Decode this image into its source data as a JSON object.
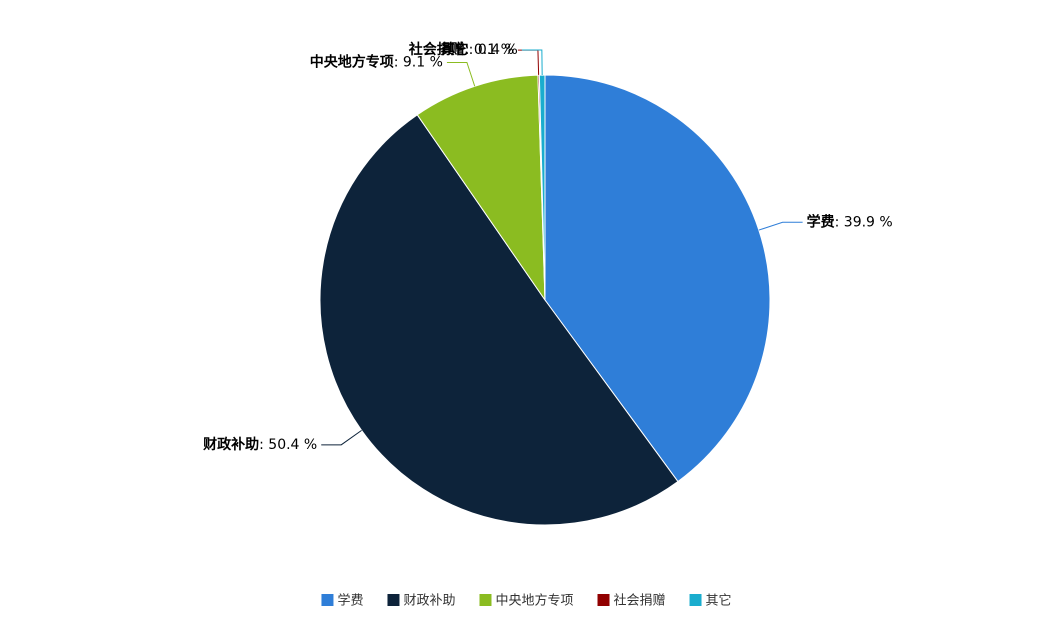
{
  "chart_data": {
    "type": "pie",
    "categories": [
      "学费",
      "财政补助",
      "中央地方专项",
      "社会捐赠",
      "其它"
    ],
    "values": [
      39.9,
      50.4,
      9.1,
      0.1,
      0.4
    ],
    "value_labels": [
      "39.9 %",
      "50.4 %",
      "9.1 %",
      "0.1 %",
      "0.4 %"
    ],
    "colors": [
      "#2f7ed8",
      "#0d233a",
      "#8bbc21",
      "#910000",
      "#1aadce"
    ],
    "legend": "bottom"
  }
}
